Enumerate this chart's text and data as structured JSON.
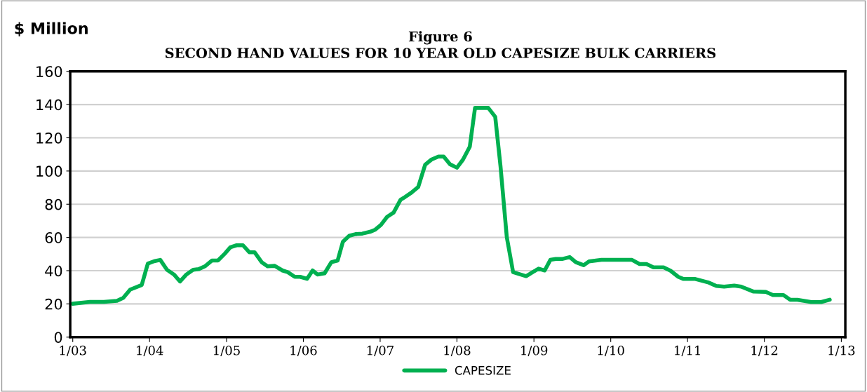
{
  "chart_data": {
    "type": "line",
    "title": "Figure 6\nSECOND HAND VALUES FOR 10 YEAR OLD CAPESIZE BULK CARRIERS",
    "ylabel": "$ Million",
    "x": [
      "2003-01-01",
      "2003-03-24",
      "2003-05-29",
      "2003-07-30",
      "2003-08-29",
      "2003-10-01",
      "2003-11-25",
      "2003-12-24",
      "2004-01-23",
      "2004-02-21",
      "2004-03-24",
      "2004-04-26",
      "2004-05-25",
      "2004-06-24",
      "2004-07-26",
      "2004-08-21",
      "2004-09-20",
      "2004-10-23",
      "2004-11-21",
      "2004-12-24",
      "2005-01-19",
      "2005-02-18",
      "2005-03-20",
      "2005-04-19",
      "2005-05-14",
      "2005-06-17",
      "2005-07-15",
      "2005-08-18",
      "2005-09-24",
      "2005-10-19",
      "2005-11-21",
      "2005-12-17",
      "2006-01-19",
      "2006-02-14",
      "2006-03-09",
      "2006-04-12",
      "2006-05-14",
      "2006-06-13",
      "2006-07-08",
      "2006-08-07",
      "2006-09-06",
      "2006-10-08",
      "2006-11-14",
      "2006-12-09",
      "2007-01-05",
      "2007-02-03",
      "2007-03-06",
      "2007-04-08",
      "2007-04-30",
      "2007-05-29",
      "2007-07-01",
      "2007-08-03",
      "2007-09-02",
      "2007-10-05",
      "2007-10-30",
      "2007-11-29",
      "2008-01-01",
      "2008-01-30",
      "2008-03-02",
      "2008-03-27",
      "2008-05-29",
      "2008-07-01",
      "2008-07-26",
      "2008-08-25",
      "2008-09-24",
      "2008-11-25",
      "2008-12-27",
      "2009-01-23",
      "2009-02-21",
      "2009-03-20",
      "2009-04-15",
      "2009-05-18",
      "2009-06-20",
      "2009-07-19",
      "2009-08-25",
      "2009-09-20",
      "2009-11-18",
      "2010-04-12",
      "2010-05-18",
      "2010-06-20",
      "2010-07-23",
      "2010-09-09",
      "2010-10-12",
      "2010-11-18",
      "2010-12-13",
      "2011-02-07",
      "2011-04-08",
      "2011-05-18",
      "2011-06-24",
      "2011-08-11",
      "2011-09-13",
      "2011-11-11",
      "2012-01-08",
      "2012-02-11",
      "2012-04-01",
      "2012-05-03",
      "2012-06-06",
      "2012-08-11",
      "2012-09-27",
      "2012-11-07"
    ],
    "series": [
      {
        "name": "CAPESIZE",
        "color": "#00b050",
        "values": [
          20.1,
          21.2,
          21.2,
          21.8,
          23.6,
          28.6,
          31.4,
          44.3,
          45.7,
          46.5,
          40.5,
          37.7,
          33.5,
          37.7,
          40.5,
          40.9,
          42.6,
          46.1,
          46.1,
          50.3,
          54.1,
          55.3,
          55.3,
          51.1,
          51.1,
          45.1,
          42.6,
          42.9,
          40.1,
          39.1,
          36.3,
          36.3,
          35.1,
          40.1,
          37.7,
          38.4,
          45.1,
          46.1,
          57.4,
          61,
          62,
          62.3,
          63.4,
          64.7,
          67.6,
          72.4,
          75,
          82.7,
          84.4,
          86.9,
          90.4,
          103.8,
          106.9,
          108.7,
          108.7,
          104.1,
          102,
          106.9,
          114.6,
          138,
          138,
          132.6,
          103,
          60.2,
          39.1,
          36.7,
          39.2,
          41.2,
          40.1,
          46.5,
          47.1,
          47.1,
          48.2,
          45.1,
          43.3,
          45.6,
          46.5,
          46.5,
          44,
          44,
          42,
          42,
          40,
          36.3,
          35,
          35,
          33,
          30.8,
          30.4,
          31,
          30.4,
          27.4,
          27.2,
          25.3,
          25.3,
          22.5,
          22.5,
          21.1,
          21.1,
          22.5
        ]
      }
    ],
    "xlim": [
      "2002-12-20",
      "2013-01-20"
    ],
    "xticks": [
      {
        "value": "2003-01-01",
        "label": "1/03"
      },
      {
        "value": "2004-01-01",
        "label": "1/04"
      },
      {
        "value": "2005-01-01",
        "label": "1/05"
      },
      {
        "value": "2006-01-01",
        "label": "1/06"
      },
      {
        "value": "2007-01-01",
        "label": "1/07"
      },
      {
        "value": "2008-01-01",
        "label": "1/08"
      },
      {
        "value": "2009-01-01",
        "label": "1/09"
      },
      {
        "value": "2010-01-01",
        "label": "1/10"
      },
      {
        "value": "2011-01-01",
        "label": "1/11"
      },
      {
        "value": "2012-01-01",
        "label": "1/12"
      },
      {
        "value": "2013-01-01",
        "label": "1/13"
      }
    ],
    "ylim": [
      0,
      160
    ],
    "yticks": [
      0,
      20,
      40,
      60,
      80,
      100,
      120,
      140,
      160
    ],
    "grid": "y",
    "legend": "bottom",
    "line_style": "solid",
    "marker": "none"
  }
}
